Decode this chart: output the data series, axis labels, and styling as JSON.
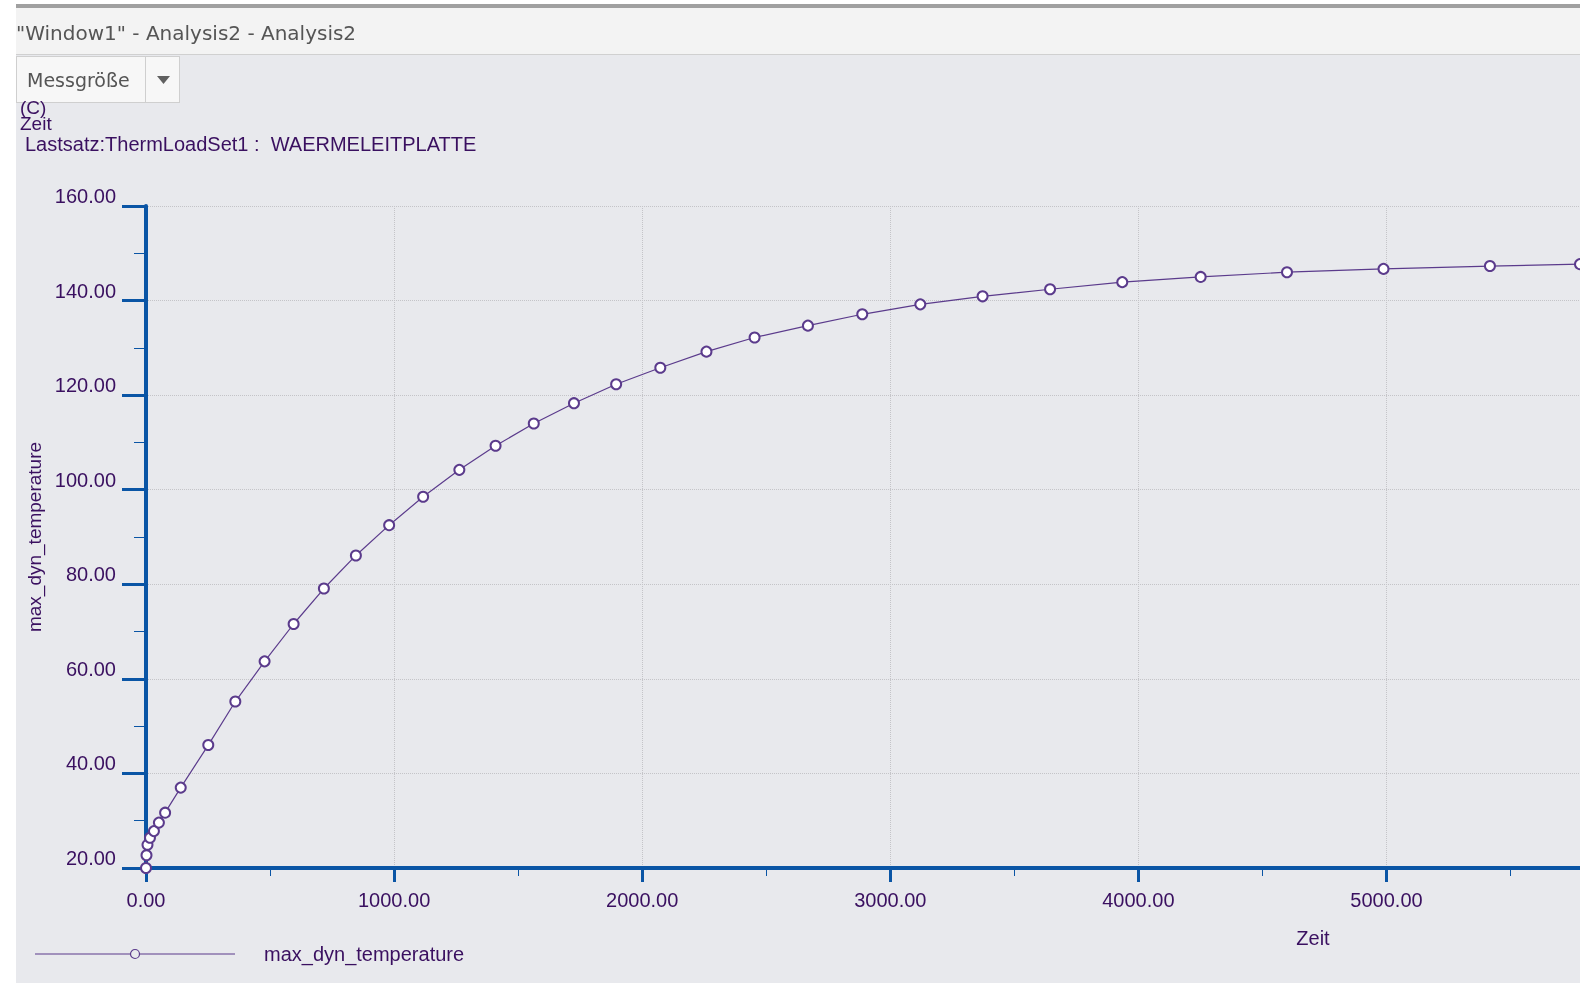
{
  "chart_data": {
    "type": "line",
    "title": "Lastsatz:ThermLoadSet1 :  WAERMELEITPLATTE",
    "xlabel": "Zeit",
    "ylabel": "max_dyn_temperature",
    "annotations": [
      "\"Window1\" - Analysis2 - Analysis2",
      "Messgröße",
      "(C)",
      "Zeit"
    ],
    "series": [
      {
        "name": "max_dyn_temperature",
        "color": "#5b3b8c",
        "x": [
          0,
          2,
          6,
          16,
          32,
          52,
          77,
          140,
          251,
          360,
          478,
          595,
          717,
          846,
          980,
          1117,
          1263,
          1409,
          1563,
          1725,
          1895,
          2073,
          2259,
          2453,
          2668,
          2887,
          3121,
          3372,
          3644,
          3935,
          4251,
          4599,
          4988,
          5417,
          5780
        ],
        "values": [
          20,
          22.7,
          24.9,
          26.4,
          27.8,
          29.6,
          31.7,
          37.0,
          46.0,
          55.2,
          63.7,
          71.6,
          79.1,
          86.1,
          92.5,
          98.5,
          104.2,
          109.3,
          114.0,
          118.3,
          122.3,
          125.8,
          129.2,
          132.2,
          134.7,
          137.1,
          139.2,
          140.9,
          142.4,
          143.9,
          145.0,
          146.0,
          146.7,
          147.3,
          147.7
        ]
      }
    ],
    "xlim": [
      0,
      5780
    ],
    "xticks": [
      {
        "value": 0,
        "label": "0.00"
      },
      {
        "value": 1000,
        "label": "1000.00"
      },
      {
        "value": 2000,
        "label": "2000.00"
      },
      {
        "value": 3000,
        "label": "3000.00"
      },
      {
        "value": 4000,
        "label": "4000.00"
      },
      {
        "value": 5000,
        "label": "5000.00"
      }
    ],
    "ylim": [
      20,
      160
    ],
    "yticks": [
      {
        "value": 20,
        "label": "20.00"
      },
      {
        "value": 40,
        "label": "40.00"
      },
      {
        "value": 60,
        "label": "60.00"
      },
      {
        "value": 80,
        "label": "80.00"
      },
      {
        "value": 100,
        "label": "100.00"
      },
      {
        "value": 120,
        "label": "120.00"
      },
      {
        "value": 140,
        "label": "140.00"
      },
      {
        "value": 160,
        "label": "160.00"
      }
    ],
    "grid": true,
    "legend": "bottom left",
    "marker": "circle",
    "line_style": "solid"
  }
}
